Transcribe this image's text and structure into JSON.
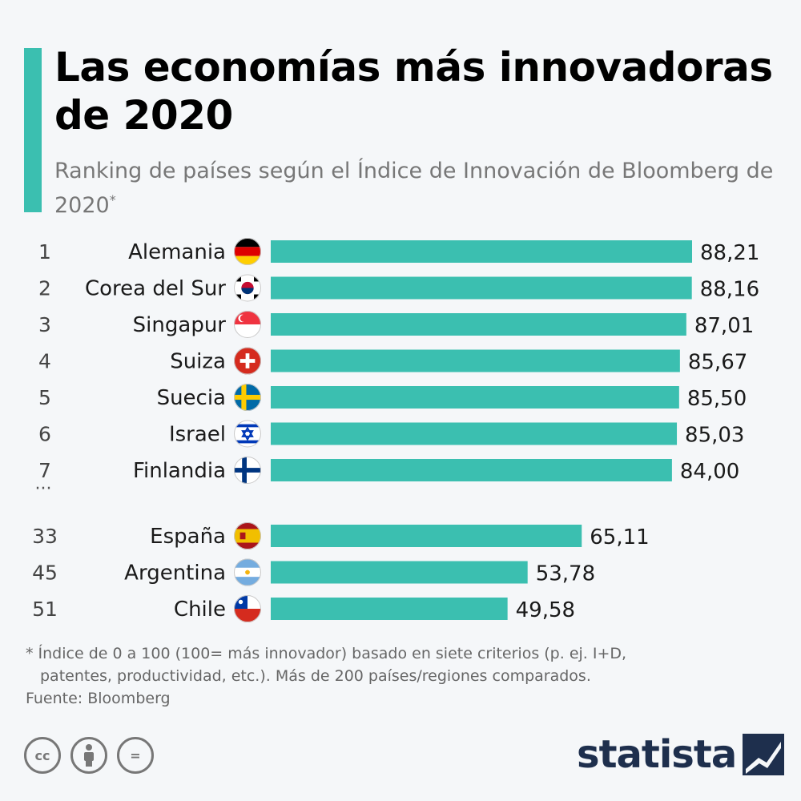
{
  "title": "Las economías más innovadoras de 2020",
  "subtitle": "Ranking de países según el Índice de Innovación de Bloomberg de 2020",
  "subtitle_mark": "*",
  "ellipsis": "...",
  "chart_data": {
    "type": "bar",
    "orientation": "horizontal",
    "title": "Las economías más innovadoras de 2020",
    "xlim": [
      0,
      100
    ],
    "bar_color": "#3bbfb0",
    "rows": [
      {
        "rank": "1",
        "country": "Alemania",
        "value": 88.21,
        "label": "88,21",
        "flag": "de"
      },
      {
        "rank": "2",
        "country": "Corea del Sur",
        "value": 88.16,
        "label": "88,16",
        "flag": "kr"
      },
      {
        "rank": "3",
        "country": "Singapur",
        "value": 87.01,
        "label": "87,01",
        "flag": "sg"
      },
      {
        "rank": "4",
        "country": "Suiza",
        "value": 85.67,
        "label": "85,67",
        "flag": "ch"
      },
      {
        "rank": "5",
        "country": "Suecia",
        "value": 85.5,
        "label": "85,50",
        "flag": "se"
      },
      {
        "rank": "6",
        "country": "Israel",
        "value": 85.03,
        "label": "85,03",
        "flag": "il"
      },
      {
        "rank": "7",
        "country": "Finlandia",
        "value": 84.0,
        "label": "84,00",
        "flag": "fi"
      },
      {
        "rank": "33",
        "country": "España",
        "value": 65.11,
        "label": "65,11",
        "flag": "es"
      },
      {
        "rank": "45",
        "country": "Argentina",
        "value": 53.78,
        "label": "53,78",
        "flag": "ar"
      },
      {
        "rank": "51",
        "country": "Chile",
        "value": 49.58,
        "label": "49,58",
        "flag": "cl"
      }
    ]
  },
  "footnote": {
    "line1": "* Índice de 0 a 100 (100= más innovador) basado en siete criterios (p. ej. I+D,",
    "line2": "patentes, productividad, etc.). Más de 200 países/regiones comparados."
  },
  "source": "Fuente: Bloomberg",
  "license_icons": [
    "cc-icon",
    "attribution-icon",
    "no-derivatives-icon"
  ],
  "license_labels": {
    "cc": "cc",
    "by": "",
    "nd": "="
  },
  "brand": "statista",
  "colors": {
    "accent": "#3bbfb0",
    "brand": "#1e2f4d",
    "title": "#000000",
    "muted": "#777777"
  }
}
